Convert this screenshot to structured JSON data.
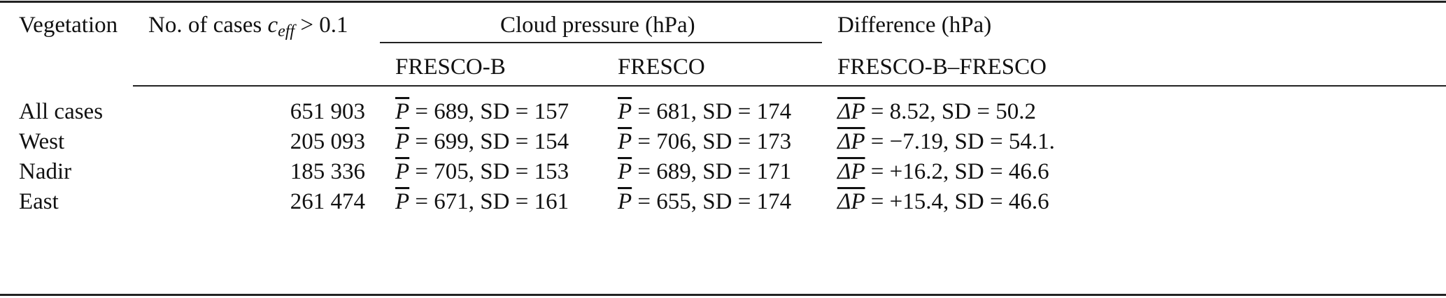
{
  "header": {
    "vegetation": "Vegetation",
    "cases_prefix": "No. of cases ",
    "cases_var": "c",
    "cases_sub": "eff",
    "cases_suffix": " > 0.1",
    "cloud_pressure": "Cloud pressure (hPa)",
    "difference": "Difference (hPa)",
    "fresco_b": "FRESCO-B",
    "fresco": "FRESCO",
    "diff_sub": "FRESCO-B–FRESCO"
  },
  "symbols": {
    "p": "P",
    "delta_p": "ΔP"
  },
  "rows": [
    {
      "vegetation": "All cases",
      "cases": "651 903",
      "fresco_b": {
        "mean": "689",
        "sd": "157"
      },
      "fresco": {
        "mean": "681",
        "sd": "174"
      },
      "diff": {
        "mean": "8.52",
        "sd": "50.2"
      }
    },
    {
      "vegetation": "West",
      "cases": "205 093",
      "fresco_b": {
        "mean": "699",
        "sd": "154"
      },
      "fresco": {
        "mean": "706",
        "sd": "173"
      },
      "diff": {
        "mean": "−7.19",
        "sd": "54.1."
      }
    },
    {
      "vegetation": "Nadir",
      "cases": "185 336",
      "fresco_b": {
        "mean": "705",
        "sd": "153"
      },
      "fresco": {
        "mean": "689",
        "sd": "171"
      },
      "diff": {
        "mean": "+16.2",
        "sd": "46.6"
      }
    },
    {
      "vegetation": "East",
      "cases": "261 474",
      "fresco_b": {
        "mean": "671",
        "sd": "161"
      },
      "fresco": {
        "mean": "655",
        "sd": "174"
      },
      "diff": {
        "mean": "+15.4",
        "sd": "46.6"
      }
    }
  ]
}
